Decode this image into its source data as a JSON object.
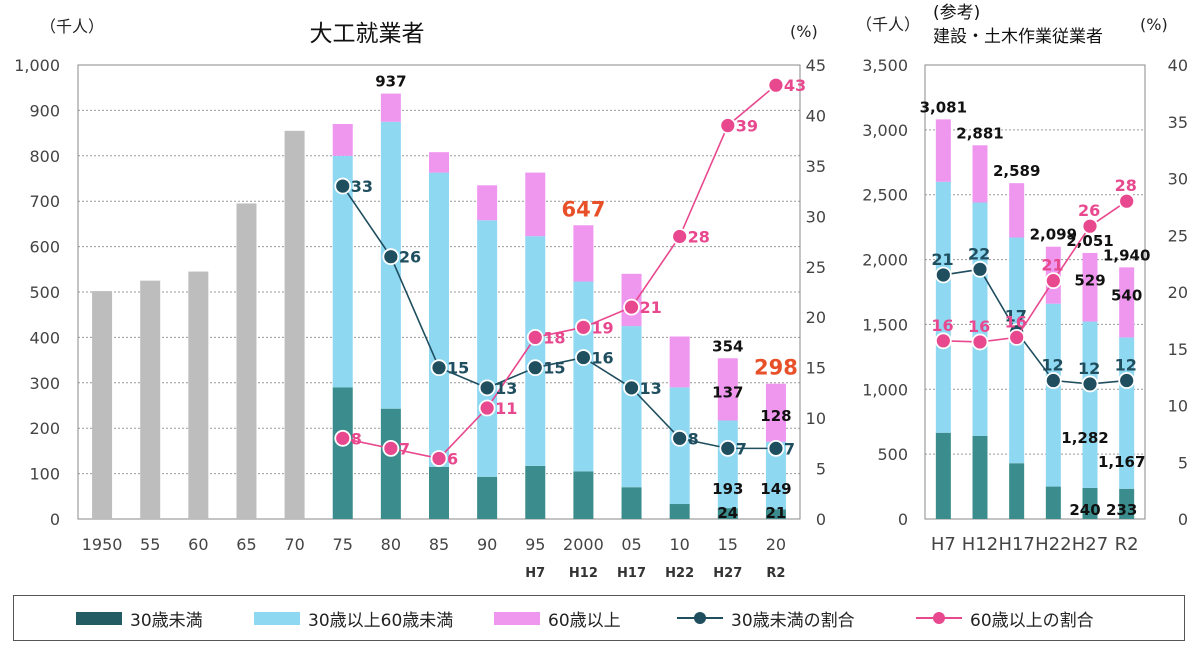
{
  "chart_data": [
    {
      "type": "bar",
      "title": "大工就業者",
      "unit_left": "（千人）",
      "unit_right": "(%)",
      "ylim": [
        0,
        1000
      ],
      "yticks": [
        "0",
        "100",
        "200",
        "300",
        "400",
        "500",
        "600",
        "700",
        "800",
        "900",
        "1,000"
      ],
      "y2lim": [
        0,
        45
      ],
      "y2ticks": [
        "0",
        "5",
        "10",
        "15",
        "20",
        "25",
        "30",
        "35",
        "40",
        "45"
      ],
      "categories": [
        "1950",
        "55",
        "60",
        "65",
        "70",
        "75",
        "80",
        "85",
        "90",
        "95",
        "2000",
        "05",
        "10",
        "15",
        "20"
      ],
      "categories2": [
        "",
        "",
        "",
        "",
        "",
        "",
        "",
        "",
        "",
        "H7",
        "H12",
        "H17",
        "H22",
        "H27",
        "R2"
      ],
      "total_only": [
        502,
        525,
        545,
        695,
        855,
        null,
        null,
        null,
        null,
        null,
        null,
        null,
        null,
        null,
        null
      ],
      "series": [
        {
          "name": "30歳未満",
          "values": [
            null,
            null,
            null,
            null,
            null,
            290,
            243,
            115,
            93,
            117,
            105,
            70,
            33,
            24,
            21
          ]
        },
        {
          "name": "30歳以上60歳未満",
          "values": [
            null,
            null,
            null,
            null,
            null,
            510,
            632,
            648,
            565,
            506,
            418,
            355,
            257,
            193,
            149
          ]
        },
        {
          "name": "60歳以上",
          "values": [
            null,
            null,
            null,
            null,
            null,
            70,
            62,
            45,
            77,
            140,
            124,
            115,
            112,
            137,
            128
          ]
        }
      ],
      "ratio_series": [
        {
          "name": "30歳未満の割合",
          "values": [
            null,
            null,
            null,
            null,
            null,
            33,
            26,
            15,
            13,
            15,
            16,
            13,
            8,
            7,
            7
          ]
        },
        {
          "name": "60歳以上の割合",
          "values": [
            null,
            null,
            null,
            null,
            null,
            8,
            7,
            6,
            11,
            18,
            19,
            21,
            28,
            39,
            43
          ]
        }
      ],
      "data_labels": {
        "totals": [
          "",
          "",
          "",
          "",
          "",
          "",
          "937",
          "",
          "",
          "",
          "647",
          "",
          "",
          "354",
          "298"
        ],
        "mid": [
          "",
          "",
          "",
          "",
          "",
          "",
          "",
          "",
          "",
          "",
          "",
          "",
          "",
          "193",
          "149"
        ],
        "young": [
          "",
          "",
          "",
          "",
          "",
          "",
          "",
          "",
          "",
          "",
          "",
          "",
          "",
          "24",
          "21"
        ],
        "old": [
          "",
          "",
          "",
          "",
          "",
          "",
          "",
          "",
          "",
          "",
          "",
          "",
          "",
          "137",
          "128"
        ],
        "ratio_young": [
          "",
          "",
          "",
          "",
          "",
          "33",
          "26",
          "15",
          "13",
          "15",
          "16",
          "13",
          "8",
          "7",
          "7"
        ],
        "ratio_old": [
          "",
          "",
          "",
          "",
          "",
          "8",
          "7",
          "6",
          "11",
          "18",
          "19",
          "21",
          "28",
          "39",
          "43"
        ]
      }
    },
    {
      "type": "bar",
      "title_line1": "(参考)",
      "title_line2": "建設・土木作業従業者",
      "unit_left": "（千人）",
      "unit_right": "(%)",
      "ylim": [
        0,
        3500
      ],
      "yticks": [
        "0",
        "500",
        "1,000",
        "1,500",
        "2,000",
        "2,500",
        "3,000",
        "3,500"
      ],
      "y2lim": [
        0,
        40
      ],
      "y2ticks": [
        "0",
        "5",
        "10",
        "15",
        "20",
        "25",
        "30",
        "35",
        "40"
      ],
      "categories": [
        "H7",
        "H12",
        "H17",
        "H22",
        "H27",
        "R2"
      ],
      "series": [
        {
          "name": "30歳未満",
          "values": [
            665,
            640,
            430,
            250,
            240,
            233
          ]
        },
        {
          "name": "30歳以上60歳未満",
          "values": [
            1935,
            1800,
            1740,
            1410,
            1282,
            1167
          ]
        },
        {
          "name": "60歳以上",
          "values": [
            481,
            441,
            419,
            439,
            529,
            540
          ]
        }
      ],
      "ratio_series": [
        {
          "name": "30歳未満の割合",
          "values": [
            21.5,
            22,
            16.5,
            12.2,
            11.9,
            12.2
          ]
        },
        {
          "name": "60歳以上の割合",
          "values": [
            15.7,
            15.6,
            16,
            21,
            25.8,
            28
          ]
        }
      ],
      "data_labels": {
        "totals": [
          "3,081",
          "2,881",
          "2,589",
          "2,099",
          "2,051",
          "1,940"
        ],
        "mid": [
          "",
          "",
          "",
          "",
          "1,282",
          "1,167"
        ],
        "young": [
          "",
          "",
          "",
          "",
          "240",
          "233"
        ],
        "old": [
          "",
          "",
          "",
          "",
          "529",
          "540"
        ],
        "ratio_young": [
          "21",
          "22",
          "17",
          "12",
          "12",
          "12"
        ],
        "ratio_old": [
          "16",
          "16",
          "16",
          "21",
          "26",
          "28"
        ]
      }
    }
  ],
  "colors": {
    "young": "#3b8c8c",
    "mid": "#8fd8f2",
    "old": "#ef96ef",
    "total": "#bdbdbd",
    "ratio_young": "#1f4e5f",
    "ratio_old": "#e8488e",
    "highlight": "#e8502a"
  },
  "legend": [
    {
      "label": "30歳未満",
      "kind": "box",
      "color": "#245c64"
    },
    {
      "label": "30歳以上60歳未満",
      "kind": "box",
      "color": "#8fd8f2"
    },
    {
      "label": "60歳以上",
      "kind": "box",
      "color": "#ef96ef"
    },
    {
      "label": "30歳未満の割合",
      "kind": "line",
      "color": "#1f4e5f"
    },
    {
      "label": "60歳以上の割合",
      "kind": "line",
      "color": "#e8488e"
    }
  ]
}
